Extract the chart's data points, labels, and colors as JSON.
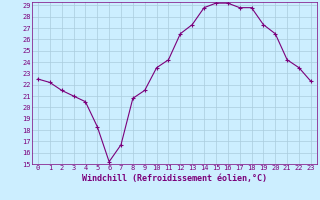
{
  "x": [
    0,
    1,
    2,
    3,
    4,
    5,
    6,
    7,
    8,
    9,
    10,
    11,
    12,
    13,
    14,
    15,
    16,
    17,
    18,
    19,
    20,
    21,
    22,
    23
  ],
  "y": [
    22.5,
    22.2,
    21.5,
    21.0,
    20.5,
    18.3,
    15.2,
    16.7,
    20.8,
    21.5,
    23.5,
    24.2,
    26.5,
    27.3,
    28.8,
    29.2,
    29.2,
    28.8,
    28.8,
    27.3,
    26.5,
    24.2,
    23.5,
    22.3
  ],
  "line_color": "#7b007b",
  "marker": "+",
  "marker_size": 3,
  "bg_color": "#cceeff",
  "grid_color": "#aaccdd",
  "xlabel": "Windchill (Refroidissement éolien,°C)",
  "ylabel": "",
  "ylim": [
    15,
    29
  ],
  "xlim": [
    -0.5,
    23.5
  ],
  "yticks": [
    15,
    16,
    17,
    18,
    19,
    20,
    21,
    22,
    23,
    24,
    25,
    26,
    27,
    28,
    29
  ],
  "xticks": [
    0,
    1,
    2,
    3,
    4,
    5,
    6,
    7,
    8,
    9,
    10,
    11,
    12,
    13,
    14,
    15,
    16,
    17,
    18,
    19,
    20,
    21,
    22,
    23
  ],
  "tick_fontsize": 5.0,
  "xlabel_fontsize": 6.0,
  "line_width": 0.8
}
